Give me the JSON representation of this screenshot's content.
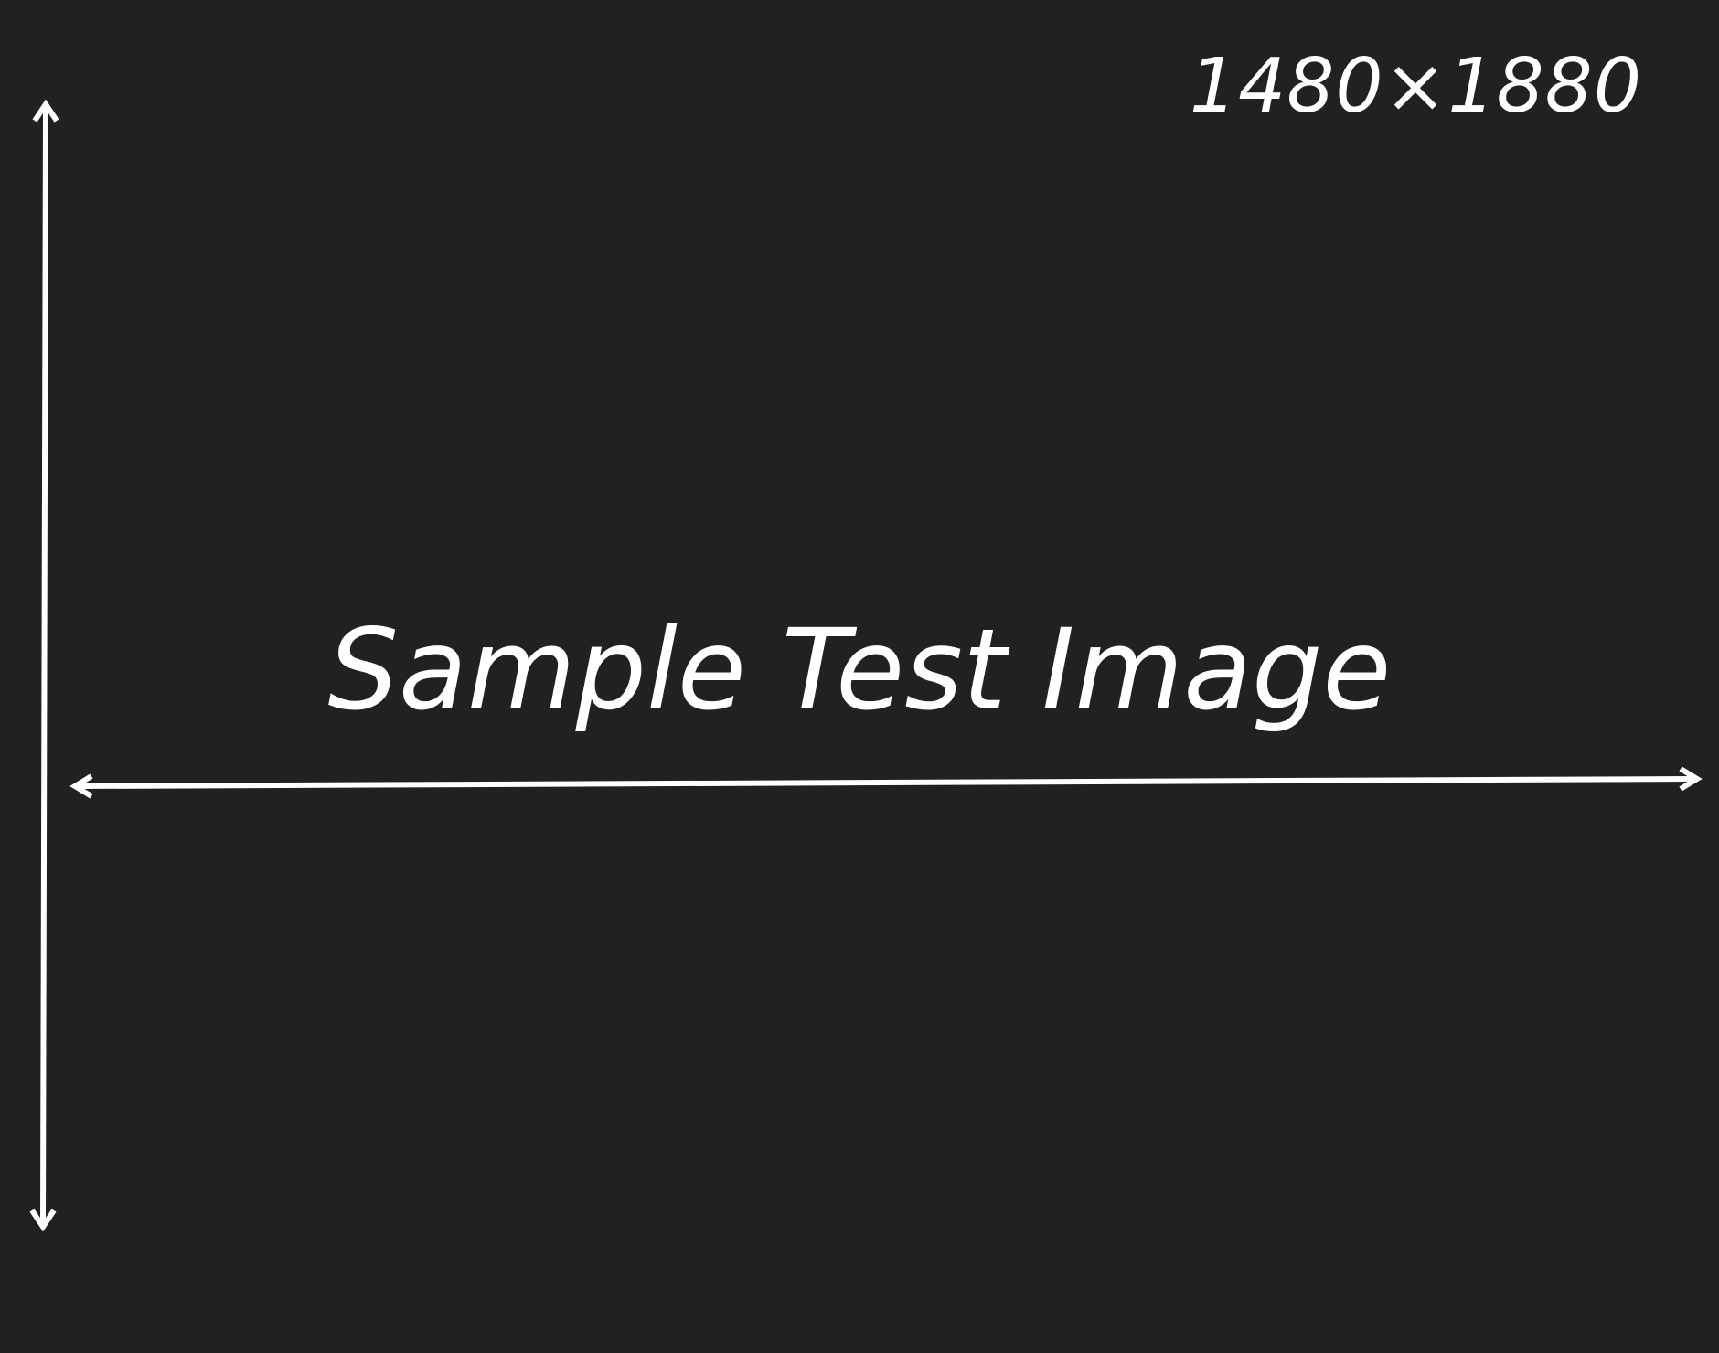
{
  "image": {
    "title": "Sample Test Image",
    "dimensions_label": "1480×1880",
    "background_color": "#212121",
    "foreground_color": "#ffffff"
  },
  "arrows": [
    {
      "name": "vertical-double-arrow-icon"
    },
    {
      "name": "horizontal-double-arrow-icon"
    }
  ]
}
